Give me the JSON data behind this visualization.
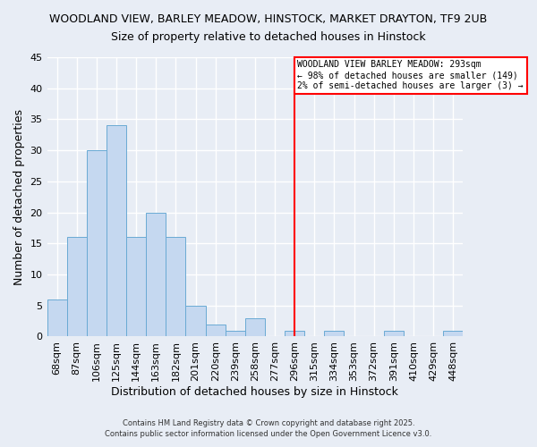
{
  "title1": "WOODLAND VIEW, BARLEY MEADOW, HINSTOCK, MARKET DRAYTON, TF9 2UB",
  "title2": "Size of property relative to detached houses in Hinstock",
  "xlabel": "Distribution of detached houses by size in Hinstock",
  "ylabel": "Number of detached properties",
  "bar_values": [
    6,
    16,
    30,
    34,
    16,
    20,
    16,
    5,
    2,
    1,
    3,
    0,
    1,
    0,
    1,
    0,
    0,
    1,
    0,
    0,
    1
  ],
  "bar_labels": [
    "68sqm",
    "87sqm",
    "106sqm",
    "125sqm",
    "144sqm",
    "163sqm",
    "182sqm",
    "201sqm",
    "220sqm",
    "239sqm",
    "258sqm",
    "277sqm",
    "296sqm",
    "315sqm",
    "334sqm",
    "353sqm",
    "372sqm",
    "391sqm",
    "410sqm",
    "429sqm",
    "448sqm"
  ],
  "bar_color": "#c5d8f0",
  "bar_edge_color": "#6aaad4",
  "background_color": "#e8edf5",
  "grid_color": "#ffffff",
  "vline_color": "#ff0000",
  "annotation_text": "WOODLAND VIEW BARLEY MEADOW: 293sqm\n← 98% of detached houses are smaller (149)\n2% of semi-detached houses are larger (3) →",
  "annotation_box_color": "#ff0000",
  "ylim": [
    0,
    45
  ],
  "yticks": [
    0,
    5,
    10,
    15,
    20,
    25,
    30,
    35,
    40,
    45
  ],
  "footer1": "Contains HM Land Registry data © Crown copyright and database right 2025.",
  "footer2": "Contains public sector information licensed under the Open Government Licence v3.0.",
  "title1_fontsize": 9,
  "title2_fontsize": 9,
  "axis_label_fontsize": 9,
  "tick_fontsize": 8
}
